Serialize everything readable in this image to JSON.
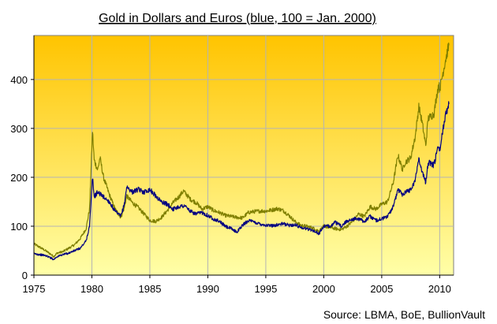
{
  "chart_data": {
    "type": "line",
    "title": "Gold in Dollars and Euros (blue, 100 = Jan. 2000)",
    "source": "Source: LBMA, BoE, BullionVault",
    "xlabel": "",
    "ylabel": "",
    "xlim": [
      1975,
      2011.2
    ],
    "ylim": [
      0,
      490
    ],
    "x_ticks": [
      1975,
      1980,
      1985,
      1990,
      1995,
      2000,
      2005,
      2010
    ],
    "x_tick_labels": [
      "1975",
      "1980",
      "1985",
      "1990",
      "1995",
      "2000",
      "2005",
      "2010"
    ],
    "y_ticks": [
      0,
      100,
      200,
      300,
      400
    ],
    "y_tick_labels": [
      "0",
      "100",
      "200",
      "300",
      "400"
    ],
    "grid": true,
    "legend": "none",
    "background": {
      "top": "#FFC400",
      "bottom": "#FFFFA8"
    },
    "series": [
      {
        "color": "#7F7F00",
        "points": [
          [
            1975.0,
            64
          ],
          [
            1975.5,
            57
          ],
          [
            1976.0,
            50
          ],
          [
            1976.5,
            42
          ],
          [
            1976.7,
            38
          ],
          [
            1977.0,
            45
          ],
          [
            1977.5,
            48
          ],
          [
            1978.0,
            55
          ],
          [
            1978.5,
            62
          ],
          [
            1979.0,
            75
          ],
          [
            1979.5,
            95
          ],
          [
            1979.8,
            135
          ],
          [
            1980.05,
            295
          ],
          [
            1980.2,
            235
          ],
          [
            1980.5,
            215
          ],
          [
            1980.7,
            240
          ],
          [
            1981.0,
            200
          ],
          [
            1981.5,
            165
          ],
          [
            1982.0,
            135
          ],
          [
            1982.5,
            118
          ],
          [
            1982.8,
            138
          ],
          [
            1983.0,
            162
          ],
          [
            1983.5,
            148
          ],
          [
            1984.0,
            138
          ],
          [
            1984.5,
            125
          ],
          [
            1985.0,
            112
          ],
          [
            1985.5,
            110
          ],
          [
            1986.0,
            118
          ],
          [
            1986.5,
            132
          ],
          [
            1987.0,
            148
          ],
          [
            1987.5,
            160
          ],
          [
            1987.9,
            172
          ],
          [
            1988.5,
            155
          ],
          [
            1989.0,
            148
          ],
          [
            1989.5,
            135
          ],
          [
            1990.0,
            140
          ],
          [
            1990.5,
            132
          ],
          [
            1991.0,
            128
          ],
          [
            1991.5,
            122
          ],
          [
            1992.0,
            120
          ],
          [
            1992.5,
            118
          ],
          [
            1993.0,
            117
          ],
          [
            1993.5,
            128
          ],
          [
            1994.0,
            130
          ],
          [
            1994.5,
            131
          ],
          [
            1995.0,
            131
          ],
          [
            1995.5,
            133
          ],
          [
            1996.0,
            136
          ],
          [
            1996.5,
            132
          ],
          [
            1997.0,
            122
          ],
          [
            1997.5,
            110
          ],
          [
            1998.0,
            102
          ],
          [
            1998.5,
            100
          ],
          [
            1999.0,
            97
          ],
          [
            1999.6,
            90
          ],
          [
            2000.0,
            100
          ],
          [
            2000.5,
            98
          ],
          [
            2001.0,
            95
          ],
          [
            2001.5,
            93
          ],
          [
            2002.0,
            100
          ],
          [
            2002.5,
            110
          ],
          [
            2003.0,
            125
          ],
          [
            2003.5,
            120
          ],
          [
            2004.0,
            140
          ],
          [
            2004.5,
            135
          ],
          [
            2005.0,
            145
          ],
          [
            2005.5,
            150
          ],
          [
            2006.0,
            190
          ],
          [
            2006.4,
            245
          ],
          [
            2006.8,
            215
          ],
          [
            2007.0,
            230
          ],
          [
            2007.5,
            240
          ],
          [
            2007.9,
            285
          ],
          [
            2008.2,
            345
          ],
          [
            2008.5,
            310
          ],
          [
            2008.8,
            265
          ],
          [
            2009.0,
            320
          ],
          [
            2009.5,
            330
          ],
          [
            2009.9,
            390
          ],
          [
            2010.0,
            380
          ],
          [
            2010.5,
            440
          ],
          [
            2010.8,
            470
          ]
        ]
      },
      {
        "color": "#000080",
        "points": [
          [
            1975.0,
            44
          ],
          [
            1975.5,
            42
          ],
          [
            1976.0,
            40
          ],
          [
            1976.5,
            35
          ],
          [
            1976.7,
            32
          ],
          [
            1977.0,
            38
          ],
          [
            1977.5,
            42
          ],
          [
            1978.0,
            45
          ],
          [
            1978.5,
            50
          ],
          [
            1979.0,
            55
          ],
          [
            1979.5,
            70
          ],
          [
            1979.8,
            100
          ],
          [
            1980.05,
            200
          ],
          [
            1980.2,
            160
          ],
          [
            1980.5,
            170
          ],
          [
            1981.0,
            160
          ],
          [
            1981.5,
            150
          ],
          [
            1982.0,
            130
          ],
          [
            1982.5,
            120
          ],
          [
            1982.8,
            145
          ],
          [
            1983.0,
            180
          ],
          [
            1983.5,
            170
          ],
          [
            1984.0,
            175
          ],
          [
            1984.5,
            170
          ],
          [
            1985.0,
            175
          ],
          [
            1985.5,
            162
          ],
          [
            1986.0,
            150
          ],
          [
            1986.5,
            145
          ],
          [
            1987.0,
            135
          ],
          [
            1987.5,
            140
          ],
          [
            1988.0,
            142
          ],
          [
            1988.5,
            130
          ],
          [
            1989.0,
            125
          ],
          [
            1989.5,
            128
          ],
          [
            1990.0,
            122
          ],
          [
            1990.5,
            115
          ],
          [
            1991.0,
            110
          ],
          [
            1991.5,
            100
          ],
          [
            1992.0,
            95
          ],
          [
            1992.5,
            88
          ],
          [
            1993.0,
            102
          ],
          [
            1993.5,
            112
          ],
          [
            1994.0,
            108
          ],
          [
            1994.5,
            105
          ],
          [
            1995.0,
            102
          ],
          [
            1995.5,
            101
          ],
          [
            1996.0,
            103
          ],
          [
            1996.5,
            105
          ],
          [
            1997.0,
            102
          ],
          [
            1997.5,
            103
          ],
          [
            1998.0,
            98
          ],
          [
            1998.5,
            95
          ],
          [
            1999.0,
            92
          ],
          [
            1999.6,
            85
          ],
          [
            2000.0,
            100
          ],
          [
            2000.5,
            100
          ],
          [
            2001.0,
            108
          ],
          [
            2001.5,
            100
          ],
          [
            2002.0,
            110
          ],
          [
            2002.5,
            115
          ],
          [
            2003.0,
            115
          ],
          [
            2003.5,
            110
          ],
          [
            2004.0,
            120
          ],
          [
            2004.5,
            112
          ],
          [
            2005.0,
            115
          ],
          [
            2005.5,
            120
          ],
          [
            2006.0,
            140
          ],
          [
            2006.4,
            175
          ],
          [
            2006.8,
            165
          ],
          [
            2007.0,
            170
          ],
          [
            2007.5,
            175
          ],
          [
            2007.9,
            195
          ],
          [
            2008.2,
            240
          ],
          [
            2008.5,
            210
          ],
          [
            2008.8,
            190
          ],
          [
            2009.0,
            230
          ],
          [
            2009.5,
            225
          ],
          [
            2009.9,
            265
          ],
          [
            2010.0,
            255
          ],
          [
            2010.5,
            330
          ],
          [
            2010.8,
            350
          ]
        ]
      }
    ]
  }
}
